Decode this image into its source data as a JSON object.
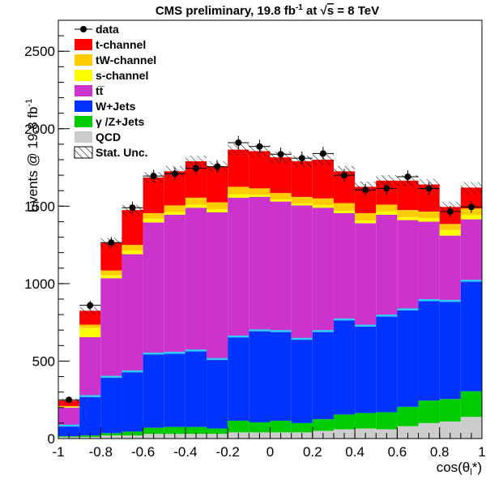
{
  "chart_data": {
    "type": "bar",
    "stacked": true,
    "title_parts": {
      "lead": "CMS preliminary, 19.8 fb",
      "sup": "-1",
      "mid": " at ",
      "sqrt": "√",
      "s": "s",
      "tail": " = 8 TeV"
    },
    "xlabel": "cos(θ",
    "xlabel_sub": "l",
    "xlabel_close": "*)",
    "ylabel": "Events @ 19.8 fb",
    "ylabel_sup": "-1",
    "xlim": [
      -1,
      1
    ],
    "ylim": [
      0,
      2700
    ],
    "x_ticks": [
      {
        "value": -1,
        "label": "-1"
      },
      {
        "value": -0.8,
        "label": "-0.8"
      },
      {
        "value": -0.6,
        "label": "-0.6"
      },
      {
        "value": -0.4,
        "label": "-0.4"
      },
      {
        "value": -0.2,
        "label": "-0.2"
      },
      {
        "value": 0,
        "label": "0"
      },
      {
        "value": 0.2,
        "label": "0.2"
      },
      {
        "value": 0.4,
        "label": "0.4"
      },
      {
        "value": 0.6,
        "label": "0.6"
      },
      {
        "value": 0.8,
        "label": "0.8"
      },
      {
        "value": 1,
        "label": "1"
      }
    ],
    "y_ticks": [
      {
        "value": 0,
        "label": "0"
      },
      {
        "value": 500,
        "label": "500"
      },
      {
        "value": 1000,
        "label": "1000"
      },
      {
        "value": 1500,
        "label": "1500"
      },
      {
        "value": 2000,
        "label": "2000"
      },
      {
        "value": 2500,
        "label": "2500"
      }
    ],
    "bin_edges": [
      -1.0,
      -0.9,
      -0.8,
      -0.7,
      -0.6,
      -0.5,
      -0.4,
      -0.3,
      -0.2,
      -0.1,
      0.0,
      0.1,
      0.2,
      0.3,
      0.4,
      0.5,
      0.6,
      0.7,
      0.8,
      0.9,
      1.0
    ],
    "stack_order": [
      "qcd",
      "zjets",
      "wjets",
      "ttbar",
      "schannel",
      "twchannel",
      "tchannel"
    ],
    "series": [
      {
        "key": "tchannel",
        "name": "t-channel",
        "color": "#ff0000",
        "cumulative": [
          245,
          825,
          1265,
          1475,
          1685,
          1725,
          1790,
          1755,
          1865,
          1855,
          1815,
          1790,
          1800,
          1725,
          1625,
          1665,
          1665,
          1640,
          1495,
          1620
        ]
      },
      {
        "key": "twchannel",
        "name": "tW-channel",
        "color": "#ffcc00",
        "cumulative": [
          210,
          735,
          1085,
          1250,
          1455,
          1505,
          1555,
          1525,
          1625,
          1615,
          1585,
          1560,
          1550,
          1520,
          1455,
          1510,
          1475,
          1465,
          1385,
          1485
        ]
      },
      {
        "key": "schannel",
        "name": "s-channel",
        "color": "#ffff00",
        "cumulative": [
          203,
          713,
          1053,
          1213,
          1419,
          1463,
          1509,
          1479,
          1577,
          1573,
          1543,
          1516,
          1506,
          1471,
          1408,
          1467,
          1429,
          1423,
          1346,
          1443
        ]
      },
      {
        "key": "ttbar",
        "name": "tt̅",
        "color": "#cc33cc",
        "cumulative": [
          200,
          655,
          1035,
          1190,
          1395,
          1445,
          1490,
          1460,
          1555,
          1560,
          1530,
          1505,
          1490,
          1455,
          1390,
          1445,
          1410,
          1400,
          1310,
          1415
        ]
      },
      {
        "key": "wjets",
        "name": "W+Jets",
        "color": "#0033ff",
        "edge": "#33ccff",
        "cumulative": [
          90,
          280,
          405,
          440,
          555,
          560,
          575,
          520,
          665,
          705,
          700,
          650,
          700,
          775,
          735,
          800,
          840,
          900,
          895,
          1025
        ]
      },
      {
        "key": "zjets",
        "name": "γ /Z+Jets",
        "color": "#00cc00",
        "cumulative": [
          15,
          20,
          35,
          45,
          70,
          75,
          75,
          65,
          115,
          105,
          115,
          100,
          125,
          155,
          165,
          170,
          205,
          245,
          255,
          305
        ]
      },
      {
        "key": "qcd",
        "name": "QCD",
        "color": "#cccccc",
        "cumulative": [
          10,
          10,
          20,
          20,
          30,
          30,
          30,
          30,
          40,
          40,
          40,
          40,
          50,
          60,
          65,
          60,
          80,
          100,
          110,
          140
        ]
      }
    ],
    "data_points": {
      "name": "data",
      "x": [
        -0.95,
        -0.85,
        -0.75,
        -0.65,
        -0.55,
        -0.45,
        -0.35,
        -0.25,
        -0.15,
        -0.05,
        0.05,
        0.15,
        0.25,
        0.35,
        0.45,
        0.55,
        0.65,
        0.75,
        0.85,
        0.95
      ],
      "y": [
        250,
        860,
        1265,
        1490,
        1695,
        1710,
        1745,
        1755,
        1910,
        1885,
        1835,
        1810,
        1840,
        1700,
        1605,
        1615,
        1690,
        1615,
        1465,
        1495
      ],
      "err": [
        16,
        29,
        36,
        39,
        41,
        41,
        42,
        42,
        44,
        43,
        43,
        43,
        43,
        41,
        40,
        40,
        41,
        40,
        38,
        39
      ]
    },
    "stat_unc": {
      "name": "Stat. Unc.",
      "err": [
        12,
        25,
        30,
        33,
        35,
        35,
        36,
        35,
        37,
        37,
        37,
        36,
        36,
        35,
        34,
        35,
        35,
        35,
        33,
        36
      ]
    }
  }
}
